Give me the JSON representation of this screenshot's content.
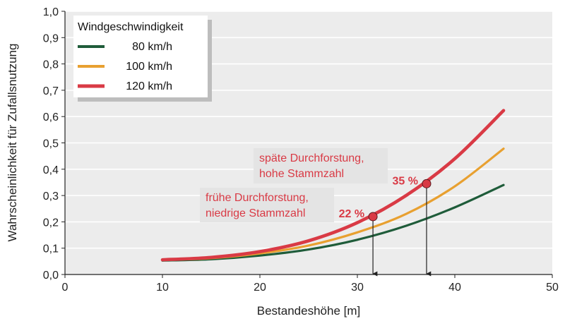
{
  "chart_data": {
    "type": "line",
    "xlabel": "Bestandeshöhe [m]",
    "ylabel": "Wahrscheinlichkeit für Zufallsnutzung",
    "xlim": [
      0,
      50
    ],
    "ylim": [
      0,
      1.0
    ],
    "x_ticks": [
      0,
      10,
      20,
      30,
      40,
      50
    ],
    "x_tick_labels": [
      "0",
      "10",
      "20",
      "30",
      "40",
      "50"
    ],
    "y_ticks": [
      0,
      0.1,
      0.2,
      0.3,
      0.4,
      0.5,
      0.6,
      0.7,
      0.8,
      0.9,
      1.0
    ],
    "y_tick_labels": [
      "0,0",
      "0,1",
      "0,2",
      "0,3",
      "0,4",
      "0,5",
      "0,6",
      "0,7",
      "0,8",
      "0,9",
      "1,0"
    ],
    "grid": "horizontal",
    "legend": {
      "title": "Windgeschwindigkeit",
      "placement": "top-left"
    },
    "series": [
      {
        "name": "80 km/h",
        "color": "#1f5c3a",
        "x": [
          10,
          15,
          20,
          25,
          30,
          35,
          40,
          45
        ],
        "y": [
          0.053,
          0.058,
          0.072,
          0.095,
          0.132,
          0.185,
          0.255,
          0.34
        ]
      },
      {
        "name": "100 km/h",
        "color": "#e8a030",
        "x": [
          10,
          15,
          20,
          25,
          30,
          35,
          40,
          45
        ],
        "y": [
          0.055,
          0.062,
          0.08,
          0.11,
          0.16,
          0.23,
          0.335,
          0.478
        ]
      },
      {
        "name": "120 km/h",
        "color": "#d93a45",
        "x": [
          10,
          15,
          20,
          25,
          30,
          35,
          40,
          45
        ],
        "y": [
          0.056,
          0.065,
          0.087,
          0.128,
          0.197,
          0.3,
          0.44,
          0.623
        ]
      }
    ],
    "annotations": [
      {
        "label_lines": [
          "späte Durchforstung,",
          "hohe Stammzahl"
        ],
        "value_label": "35 %",
        "x": 37.1,
        "y": 0.345
      },
      {
        "label_lines": [
          "frühe Durchforstung,",
          "niedrige Stammzahl"
        ],
        "value_label": "22 %",
        "x": 31.6,
        "y": 0.22
      }
    ],
    "annotation_color": "#d93a45"
  }
}
